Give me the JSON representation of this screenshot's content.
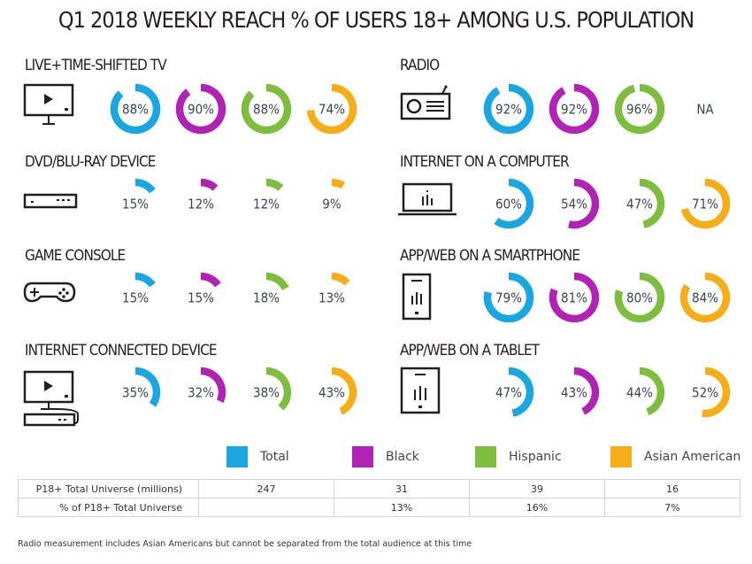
{
  "colors": {
    "total": "#1aa7e1",
    "black": "#b023b5",
    "hispanic": "#7ebd3e",
    "asian_american": "#f6ad17",
    "text": "#3d4350"
  },
  "chart_data": {
    "type": "donut-grid",
    "title": "Q1 2018 WEEKLY REACH % OF USERS 18+ AMONG U.S. POPULATION",
    "series": [
      {
        "name": "Total",
        "color_key": "total"
      },
      {
        "name": "Black",
        "color_key": "black"
      },
      {
        "name": "Hispanic",
        "color_key": "hispanic"
      },
      {
        "name": "Asian American",
        "color_key": "asian_american"
      }
    ],
    "categories": [
      {
        "label": "LIVE+TIME-SHIFTED TV",
        "icon": "tv-icon",
        "values": [
          88,
          90,
          88,
          74
        ],
        "display": [
          "88%",
          "90%",
          "88%",
          "74%"
        ]
      },
      {
        "label": "RADIO",
        "icon": "radio-icon",
        "values": [
          92,
          92,
          96,
          null
        ],
        "display": [
          "92%",
          "92%",
          "96%",
          "NA"
        ]
      },
      {
        "label": "DVD/BLU-RAY DEVICE",
        "icon": "dvd-player-icon",
        "values": [
          15,
          12,
          12,
          9
        ],
        "display": [
          "15%",
          "12%",
          "12%",
          "9%"
        ]
      },
      {
        "label": "INTERNET ON A COMPUTER",
        "icon": "laptop-icon",
        "values": [
          60,
          54,
          47,
          71
        ],
        "display": [
          "60%",
          "54%",
          "47%",
          "71%"
        ]
      },
      {
        "label": "GAME CONSOLE",
        "icon": "game-controller-icon",
        "values": [
          15,
          15,
          18,
          13
        ],
        "display": [
          "15%",
          "15%",
          "18%",
          "13%"
        ]
      },
      {
        "label": "APP/WEB ON A SMARTPHONE",
        "icon": "smartphone-icon",
        "values": [
          79,
          81,
          80,
          84
        ],
        "display": [
          "79%",
          "81%",
          "80%",
          "84%"
        ]
      },
      {
        "label": "INTERNET CONNECTED DEVICE",
        "icon": "connected-tv-icon",
        "values": [
          35,
          32,
          38,
          43
        ],
        "display": [
          "35%",
          "32%",
          "38%",
          "43%"
        ]
      },
      {
        "label": "APP/WEB ON A TABLET",
        "icon": "tablet-icon",
        "values": [
          47,
          43,
          44,
          52
        ],
        "display": [
          "47%",
          "43%",
          "44%",
          "52%"
        ]
      }
    ]
  },
  "legend": [
    {
      "label": "Total",
      "color_key": "total"
    },
    {
      "label": "Black",
      "color_key": "black"
    },
    {
      "label": "Hispanic",
      "color_key": "hispanic"
    },
    {
      "label": "Asian American",
      "color_key": "asian_american"
    }
  ],
  "table": {
    "rows": [
      {
        "label": "P18+ Total Universe (millions)",
        "cells": [
          "247",
          "31",
          "39",
          "16"
        ]
      },
      {
        "label": "% of P18+ Total Universe",
        "cells": [
          "",
          "13%",
          "16%",
          "7%"
        ]
      }
    ]
  },
  "footnote": "Radio measurement includes Asian Americans but cannot be separated from the total audience at this time"
}
